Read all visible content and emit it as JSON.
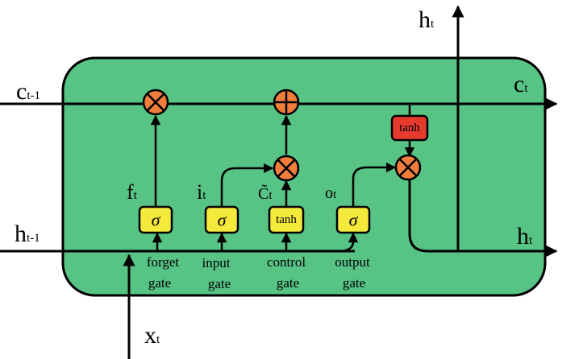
{
  "labels": {
    "c_prev": {
      "main": "c",
      "sub": "t-1"
    },
    "c_next": {
      "main": "c",
      "sub": "t"
    },
    "h_prev": {
      "main": "h",
      "sub": "t-1"
    },
    "h_next": {
      "main": "h",
      "sub": "t"
    },
    "h_top": {
      "main": "h",
      "sub": "t"
    },
    "x_in": {
      "main": "x",
      "sub": "t"
    },
    "f": {
      "main": "f",
      "sub": "t"
    },
    "i": {
      "main": "i",
      "sub": "t"
    },
    "c_tilde": {
      "main": "C̃",
      "sub": "t"
    },
    "o": {
      "main": "o",
      "sub": "t"
    }
  },
  "boxes": {
    "forget_sigma": "σ",
    "input_sigma": "σ",
    "control_tanh": "tanh",
    "output_sigma": "σ",
    "cell_tanh": "tanh"
  },
  "gates": {
    "forget": [
      "forget",
      "gate"
    ],
    "input": [
      "input",
      "gate"
    ],
    "control": [
      "control",
      "gate"
    ],
    "output": [
      "output",
      "gate"
    ]
  },
  "colors": {
    "cell_fill": "#57c384",
    "operator_fill": "#f07d3c",
    "activation_fill": "#f5ea3c",
    "tanh_red": "#e53a2c",
    "stroke": "#000000"
  }
}
